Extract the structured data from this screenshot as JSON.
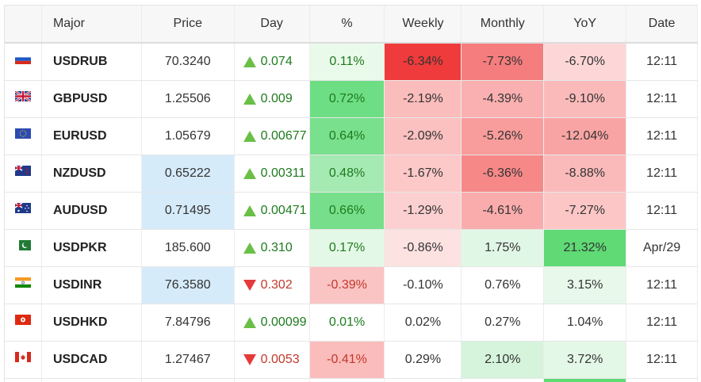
{
  "headers": {
    "major": "Major",
    "price": "Price",
    "day": "Day",
    "pct": "%",
    "weekly": "Weekly",
    "monthly": "Monthly",
    "yoy": "YoY",
    "date": "Date"
  },
  "rows": [
    {
      "flag": "russia-flag-icon",
      "symbol": "USDRUB",
      "price": "70.3240",
      "day_dir": "up",
      "day": "0.074",
      "pct": "0.11%",
      "weekly": "-6.34%",
      "monthly": "-7.73%",
      "yoy": "-6.70%",
      "date": "12:11",
      "price_bg": "#ffffff",
      "pct_bg": "#eafaea",
      "weekly_bg": "#ef3b3b",
      "monthly_bg": "#f57d7d",
      "yoy_bg": "#fdd7d7"
    },
    {
      "flag": "uk-flag-icon",
      "symbol": "GBPUSD",
      "price": "1.25506",
      "day_dir": "up",
      "day": "0.009",
      "pct": "0.72%",
      "weekly": "-2.19%",
      "monthly": "-4.39%",
      "yoy": "-9.10%",
      "date": "12:11",
      "price_bg": "#ffffff",
      "pct_bg": "#6ede84",
      "weekly_bg": "#fbbcbc",
      "monthly_bg": "#fab0b0",
      "yoy_bg": "#fbbaba"
    },
    {
      "flag": "eu-flag-icon",
      "symbol": "EURUSD",
      "price": "1.05679",
      "day_dir": "up",
      "day": "0.00677",
      "pct": "0.64%",
      "weekly": "-2.09%",
      "monthly": "-5.26%",
      "yoy": "-12.04%",
      "date": "12:11",
      "price_bg": "#ffffff",
      "pct_bg": "#79e08d",
      "weekly_bg": "#fbc0c0",
      "monthly_bg": "#f99c9c",
      "yoy_bg": "#f9a4a4"
    },
    {
      "flag": "new-zealand-flag-icon",
      "symbol": "NZDUSD",
      "price": "0.65222",
      "day_dir": "up",
      "day": "0.00311",
      "pct": "0.48%",
      "weekly": "-1.67%",
      "monthly": "-6.36%",
      "yoy": "-8.88%",
      "date": "12:11",
      "price_bg": "#d6ebfa",
      "pct_bg": "#a6eab3",
      "weekly_bg": "#fcc8c8",
      "monthly_bg": "#f78888",
      "yoy_bg": "#fbbaba"
    },
    {
      "flag": "australia-flag-icon",
      "symbol": "AUDUSD",
      "price": "0.71495",
      "day_dir": "up",
      "day": "0.00471",
      "pct": "0.66%",
      "weekly": "-1.29%",
      "monthly": "-4.61%",
      "yoy": "-7.27%",
      "date": "12:11",
      "price_bg": "#d6ebfa",
      "pct_bg": "#77df8b",
      "weekly_bg": "#fcd0d0",
      "monthly_bg": "#faacac",
      "yoy_bg": "#fcc6c6"
    },
    {
      "flag": "pakistan-flag-icon",
      "symbol": "USDPKR",
      "price": "185.600",
      "day_dir": "up",
      "day": "0.310",
      "pct": "0.17%",
      "weekly": "-0.86%",
      "monthly": "1.75%",
      "yoy": "21.32%",
      "date": "Apr/29",
      "price_bg": "#ffffff",
      "pct_bg": "#e4f8e7",
      "weekly_bg": "#fde2e2",
      "monthly_bg": "#e1f7e5",
      "yoy_bg": "#5fda74"
    },
    {
      "flag": "india-flag-icon",
      "symbol": "USDINR",
      "price": "76.3580",
      "day_dir": "down",
      "day": "0.302",
      "pct": "-0.39%",
      "weekly": "-0.10%",
      "monthly": "0.76%",
      "yoy": "3.15%",
      "date": "12:11",
      "price_bg": "#d6ebfa",
      "pct_bg": "#fbc4c4",
      "weekly_bg": "#ffffff",
      "monthly_bg": "#ffffff",
      "yoy_bg": "#e8f9eb"
    },
    {
      "flag": "hong-kong-flag-icon",
      "symbol": "USDHKD",
      "price": "7.84796",
      "day_dir": "up",
      "day": "0.00099",
      "pct": "0.01%",
      "weekly": "0.02%",
      "monthly": "0.27%",
      "yoy": "1.04%",
      "date": "12:11",
      "price_bg": "#ffffff",
      "pct_bg": "#ffffff",
      "weekly_bg": "#ffffff",
      "monthly_bg": "#ffffff",
      "yoy_bg": "#ffffff"
    },
    {
      "flag": "canada-flag-icon",
      "symbol": "USDCAD",
      "price": "1.27467",
      "day_dir": "down",
      "day": "0.0053",
      "pct": "-0.41%",
      "weekly": "0.29%",
      "monthly": "2.10%",
      "yoy": "3.72%",
      "date": "12:11",
      "price_bg": "#ffffff",
      "pct_bg": "#fbbcbc",
      "weekly_bg": "#ffffff",
      "monthly_bg": "#d5f4db",
      "yoy_bg": "#e4f8e7"
    }
  ],
  "colors": {
    "up_arrow": "#6abf46",
    "down_arrow": "#e63a3a",
    "up_text": "#1e7a1e",
    "down_text": "#c0392b"
  }
}
